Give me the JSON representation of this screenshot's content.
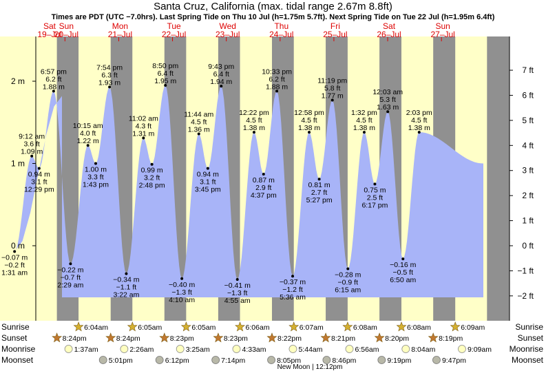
{
  "header": {
    "title": "Santa Cruz, California (max. tidal range 2.67m 8.8ft)",
    "subtitle": "Times are PDT (UTC −7.0hrs). Last Spring Tide on Thu 10 Jul (h=1.75m 5.7ft). Next Spring Tide on Tue 22 Jul (h=1.95m 6.4ft)"
  },
  "colors": {
    "day": "#ffffc8",
    "night": "#909090",
    "tide_fill": "#a8b4f8",
    "day_label": "#dd0000",
    "star": "#d4b030",
    "sunset_star": "#c07830",
    "moonrise": "#ffffc0",
    "moonset": "#b8b8a8"
  },
  "chart_data": {
    "type": "area",
    "units": [
      "m",
      "ft"
    ],
    "left_axis_ticks": [
      "2 m",
      "1 m",
      "0 m"
    ],
    "right_axis_ticks": [
      "7 ft",
      "6 ft",
      "5 ft",
      "4 ft",
      "3 ft",
      "2 ft",
      "1 ft",
      "0 ft",
      "−1 ft",
      "−2 ft"
    ],
    "days": [
      {
        "dow": "Sat",
        "date": "19‒Jul"
      },
      {
        "dow": "Sun",
        "date": "20‒Jul"
      },
      {
        "dow": "Mon",
        "date": "21‒Jul"
      },
      {
        "dow": "Tue",
        "date": "22‒Jul"
      },
      {
        "dow": "Wed",
        "date": "23‒Jul"
      },
      {
        "dow": "Thu",
        "date": "24‒Jul"
      },
      {
        "dow": "Fri",
        "date": "25‒Jul"
      },
      {
        "dow": "Sat",
        "date": "26‒Jul"
      },
      {
        "dow": "Sun",
        "date": "27‒Jul"
      }
    ],
    "tides": [
      {
        "day": 0,
        "time": "1:31 am",
        "m": "−0.07 m",
        "ft": "−0.2 ft",
        "type": "low",
        "h": -0.07,
        "t": 1.52
      },
      {
        "day": 0,
        "time": "9:12 am",
        "m": "1.09 m",
        "ft": "3.6 ft",
        "type": "high",
        "h": 1.09,
        "t": 9.2
      },
      {
        "day": 0,
        "time": "12:29 pm",
        "m": "0.94 m",
        "ft": "3.1 ft",
        "type": "low",
        "h": 0.94,
        "t": 12.48
      },
      {
        "day": 0,
        "time": "6:57 pm",
        "m": "1.88 m",
        "ft": "6.2 ft",
        "type": "high",
        "h": 1.88,
        "t": 18.95
      },
      {
        "day": 1,
        "time": "2:29 am",
        "m": "−0.22 m",
        "ft": "−0.7 ft",
        "type": "low",
        "h": -0.22,
        "t": 2.48
      },
      {
        "day": 1,
        "time": "10:15 am",
        "m": "1.22 m",
        "ft": "4.0 ft",
        "type": "high",
        "h": 1.22,
        "t": 10.25
      },
      {
        "day": 1,
        "time": "1:43 pm",
        "m": "1.00 m",
        "ft": "3.3 ft",
        "type": "low",
        "h": 1.0,
        "t": 13.72
      },
      {
        "day": 1,
        "time": "7:54 pm",
        "m": "1.93 m",
        "ft": "6.3 ft",
        "type": "high",
        "h": 1.93,
        "t": 19.9
      },
      {
        "day": 2,
        "time": "3:22 am",
        "m": "−0.34 m",
        "ft": "−1.1 ft",
        "type": "low",
        "h": -0.34,
        "t": 3.37
      },
      {
        "day": 2,
        "time": "11:02 am",
        "m": "1.31 m",
        "ft": "4.3 ft",
        "type": "high",
        "h": 1.31,
        "t": 11.03
      },
      {
        "day": 2,
        "time": "2:48 pm",
        "m": "0.99 m",
        "ft": "3.2 ft",
        "type": "low",
        "h": 0.99,
        "t": 14.8
      },
      {
        "day": 2,
        "time": "8:50 pm",
        "m": "1.95 m",
        "ft": "6.4 ft",
        "type": "high",
        "h": 1.95,
        "t": 20.83
      },
      {
        "day": 3,
        "time": "4:10 am",
        "m": "−0.40 m",
        "ft": "−1.3 ft",
        "type": "low",
        "h": -0.4,
        "t": 4.17
      },
      {
        "day": 3,
        "time": "11:44 am",
        "m": "1.36 m",
        "ft": "4.5 ft",
        "type": "high",
        "h": 1.36,
        "t": 11.73
      },
      {
        "day": 3,
        "time": "3:45 pm",
        "m": "0.94 m",
        "ft": "3.1 ft",
        "type": "low",
        "h": 0.94,
        "t": 15.75
      },
      {
        "day": 3,
        "time": "9:43 pm",
        "m": "1.94 m",
        "ft": "6.4 ft",
        "type": "high",
        "h": 1.94,
        "t": 21.72
      },
      {
        "day": 4,
        "time": "4:55 am",
        "m": "−0.41 m",
        "ft": "−1.3 ft",
        "type": "low",
        "h": -0.41,
        "t": 4.92
      },
      {
        "day": 4,
        "time": "12:22 pm",
        "m": "1.38 m",
        "ft": "4.5 ft",
        "type": "high",
        "h": 1.38,
        "t": 12.37
      },
      {
        "day": 4,
        "time": "4:37 pm",
        "m": "0.87 m",
        "ft": "2.9 ft",
        "type": "low",
        "h": 0.87,
        "t": 16.62
      },
      {
        "day": 4,
        "time": "10:33 pm",
        "m": "1.88 m",
        "ft": "6.2 ft",
        "type": "high",
        "h": 1.88,
        "t": 22.55
      },
      {
        "day": 5,
        "time": "5:36 am",
        "m": "−0.37 m",
        "ft": "−1.2 ft",
        "type": "low",
        "h": -0.37,
        "t": 5.6
      },
      {
        "day": 5,
        "time": "12:58 pm",
        "m": "1.38 m",
        "ft": "4.5 ft",
        "type": "high",
        "h": 1.38,
        "t": 12.97
      },
      {
        "day": 5,
        "time": "5:27 pm",
        "m": "0.81 m",
        "ft": "2.7 ft",
        "type": "low",
        "h": 0.81,
        "t": 17.45
      },
      {
        "day": 5,
        "time": "11:19 pm",
        "m": "1.77 m",
        "ft": "5.8 ft",
        "type": "high",
        "h": 1.77,
        "t": 23.32
      },
      {
        "day": 6,
        "time": "6:15 am",
        "m": "−0.28 m",
        "ft": "−0.9 ft",
        "type": "low",
        "h": -0.28,
        "t": 6.25
      },
      {
        "day": 6,
        "time": "1:32 pm",
        "m": "1.38 m",
        "ft": "4.5 ft",
        "type": "high",
        "h": 1.38,
        "t": 13.53
      },
      {
        "day": 6,
        "time": "6:17 pm",
        "m": "0.75 m",
        "ft": "2.5 ft",
        "type": "low",
        "h": 0.75,
        "t": 18.28
      },
      {
        "day": 7,
        "time": "12:03 am",
        "m": "1.63 m",
        "ft": "5.3 ft",
        "type": "high",
        "h": 1.63,
        "t": 0.05
      },
      {
        "day": 7,
        "time": "6:50 am",
        "m": "−0.16 m",
        "ft": "−0.5 ft",
        "type": "low",
        "h": -0.16,
        "t": 6.83
      },
      {
        "day": 7,
        "time": "2:03 pm",
        "m": "1.38 m",
        "ft": "4.5 ft",
        "type": "high",
        "h": 1.38,
        "t": 14.05
      }
    ],
    "sun": {
      "sunrise": [
        "6:04am",
        "6:05am",
        "6:05am",
        "6:06am",
        "6:07am",
        "6:08am",
        "6:08am",
        "6:09am"
      ],
      "sunset": [
        "8:24pm",
        "8:24pm",
        "8:23pm",
        "8:23pm",
        "8:22pm",
        "8:21pm",
        "8:20pm",
        "8:19pm"
      ]
    },
    "moon": {
      "moonrise": [
        {
          "day": 0,
          "time": "1:37am"
        },
        {
          "day": 1,
          "time": "2:26am"
        },
        {
          "day": 2,
          "time": "3:25am"
        },
        {
          "day": 3,
          "time": "4:33am"
        },
        {
          "day": 4,
          "time": "5:44am"
        },
        {
          "day": 5,
          "time": "6:56am"
        },
        {
          "day": 6,
          "time": "8:04am"
        },
        {
          "day": 7,
          "time": "9:09am"
        }
      ],
      "moonset": [
        {
          "day": 0,
          "time": "5:01pm"
        },
        {
          "day": 1,
          "time": "6:12pm"
        },
        {
          "day": 2,
          "time": "7:14pm"
        },
        {
          "day": 3,
          "time": "8:05pm"
        },
        {
          "day": 4,
          "time": "8:46pm"
        },
        {
          "day": 5,
          "time": "9:19pm"
        },
        {
          "day": 6,
          "time": "9:47pm"
        }
      ]
    },
    "row_labels": {
      "sunrise": "Sunrise",
      "sunset": "Sunset",
      "moonrise": "Moonrise",
      "moonset": "Moonset"
    },
    "moon_phase": "New Moon | 12:12pm"
  }
}
